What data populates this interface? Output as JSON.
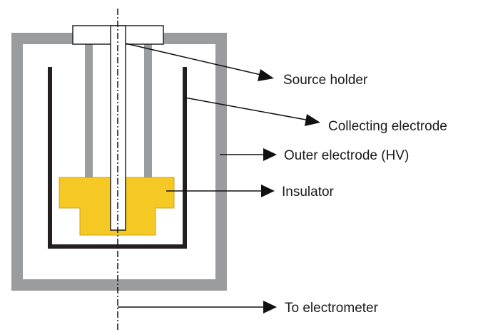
{
  "labels": {
    "source_holder": "Source holder",
    "collecting_electrode": "Collecting electrode",
    "outer_electrode": "Outer electrode (HV)",
    "insulator": "Insulator",
    "to_electrometer": "To electrometer"
  },
  "colors": {
    "outer_electrode": "#9a9c9e",
    "collecting_electrode": "#231f20",
    "insulator": "#f5c823",
    "insulator_stroke": "#c9a418",
    "source_holder_fill": "#ffffff",
    "line": "#111111"
  }
}
